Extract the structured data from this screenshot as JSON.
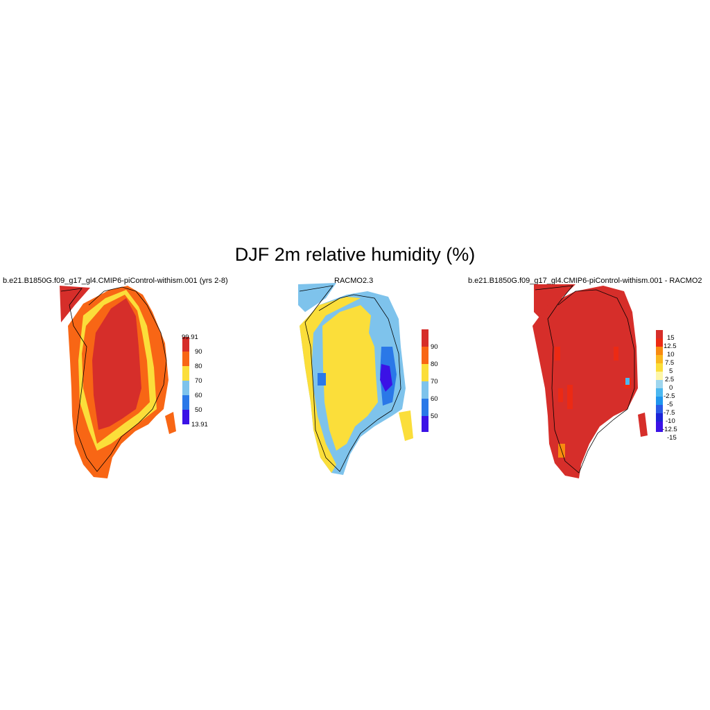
{
  "title": "DJF 2m relative humidity (%)",
  "panels": [
    {
      "title": "b.e21.B1850G.f09_g17_gl4.CMIP6-piControl-withism.001 (yrs 2-8)",
      "colorbar": {
        "colors": [
          "#3b12e6",
          "#2a78e8",
          "#7ec3ec",
          "#fbde3a",
          "#f86615",
          "#d62e2a"
        ],
        "labels": [
          "13.91",
          "50",
          "60",
          "70",
          "80",
          "90",
          "99.91"
        ]
      }
    },
    {
      "title": "RACMO2.3",
      "colorbar": {
        "colors": [
          "#3b12e6",
          "#2a78e8",
          "#7ec3ec",
          "#fbde3a",
          "#f86615",
          "#d62e2a"
        ],
        "labels": [
          "50",
          "60",
          "70",
          "80",
          "90"
        ]
      }
    },
    {
      "title": "b.e21.B1850G.f09_g17_gl4.CMIP6-piControl-withism.001 - RACMO2",
      "colorbar": {
        "colors": [
          "#3b12e6",
          "#1c24d8",
          "#2a5ae6",
          "#2096ee",
          "#4cb8f0",
          "#9fd6ee",
          "#fdf6a8",
          "#fbde3a",
          "#fab81e",
          "#f88a10",
          "#ec2a14",
          "#d62e2a"
        ],
        "labels": [
          "15",
          "12.5",
          "10",
          "7.5",
          "5",
          "2.5",
          "0",
          "-2.5",
          "-5",
          "-7.5",
          "-10",
          "-12.5",
          "-15"
        ]
      }
    }
  ]
}
